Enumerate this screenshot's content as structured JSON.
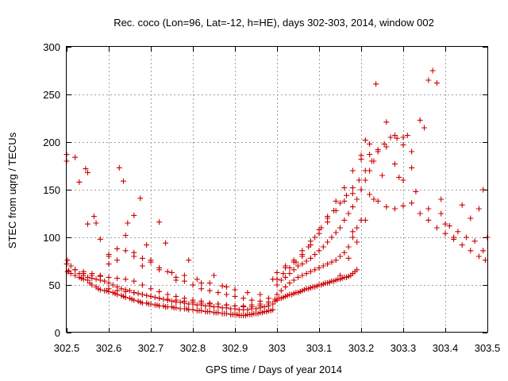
{
  "chart_data": {
    "type": "scatter",
    "title": "Rec. coco (Lon=96, Lat=-12, h=HE), days 302-303, 2014, window 002",
    "xlabel": "GPS time / Days of year 2014",
    "ylabel": "STEC from uqrg / TECUs",
    "xlim": [
      302.5,
      303.5
    ],
    "ylim": [
      0,
      300
    ],
    "x_ticks": [
      302.5,
      302.6,
      302.7,
      302.8,
      302.9,
      303,
      303.1,
      303.2,
      303.3,
      303.4,
      303.5
    ],
    "x_tick_labels": [
      "302.5",
      "302.6",
      "302.7",
      "302.8",
      "302.9",
      "303",
      "303.1",
      "303.2",
      "303.3",
      "303.4",
      "303.5"
    ],
    "y_ticks": [
      0,
      50,
      100,
      150,
      200,
      250,
      300
    ],
    "y_tick_labels": [
      "0",
      "50",
      "100",
      "150",
      "200",
      "250",
      "300"
    ],
    "grid": true,
    "marker": "plus",
    "color": "#cc0000",
    "series": [
      {
        "x": [
          302.502,
          302.505,
          302.51,
          302.52,
          302.53,
          302.535,
          302.54,
          302.55,
          302.555,
          302.56,
          302.57,
          302.575,
          302.58,
          302.59,
          302.595,
          302.6,
          302.61,
          302.615,
          302.62,
          302.63,
          302.635,
          302.64,
          302.65,
          302.655,
          302.66,
          302.67,
          302.675,
          302.68,
          302.69,
          302.695,
          302.7,
          302.71,
          302.715,
          302.72,
          302.73,
          302.735,
          302.74,
          302.75,
          302.755,
          302.76,
          302.77,
          302.78,
          302.785,
          302.79,
          302.8,
          302.81,
          302.815,
          302.82,
          302.83,
          302.835,
          302.84,
          302.85,
          302.855,
          302.86,
          302.87,
          302.875,
          302.88,
          302.89,
          302.895,
          302.9,
          302.905,
          302.91,
          302.915,
          302.92,
          302.925,
          302.93,
          302.935,
          302.94,
          302.945,
          302.95,
          302.955,
          302.96,
          302.965,
          302.97,
          302.975,
          302.98,
          302.985,
          302.99
        ],
        "y": [
          64,
          65,
          62,
          60,
          58,
          57,
          56,
          55,
          52,
          50,
          48,
          46,
          45,
          44,
          44,
          43,
          42,
          41,
          40,
          39,
          38,
          37,
          36,
          35,
          34,
          33,
          32,
          31,
          31,
          30,
          30,
          29,
          29,
          28,
          28,
          27,
          27,
          27,
          26,
          26,
          25,
          25,
          25,
          24,
          24,
          23,
          23,
          23,
          22,
          22,
          22,
          21,
          21,
          21,
          20,
          20,
          20,
          19,
          19,
          19,
          19,
          18,
          18,
          18,
          18,
          19,
          19,
          19,
          20,
          20,
          20,
          21,
          21,
          22,
          22,
          23,
          23,
          24
        ]
      },
      {
        "x": [
          302.502,
          302.51,
          302.52,
          302.53,
          302.54,
          302.55,
          302.56,
          302.57,
          302.58,
          302.59,
          302.6,
          302.61,
          302.62,
          302.63,
          302.64,
          302.65,
          302.66,
          302.67,
          302.68,
          302.69,
          302.7,
          302.71,
          302.72,
          302.73,
          302.74,
          302.75,
          302.76,
          302.77,
          302.78,
          302.79,
          302.8,
          302.81,
          302.82,
          302.83,
          302.84,
          302.85,
          302.86,
          302.87,
          302.88,
          302.89,
          302.9,
          302.91,
          302.92,
          302.93,
          302.94,
          302.95,
          302.96,
          302.97,
          302.98,
          302.99
        ],
        "y": [
          76,
          70,
          66,
          62,
          60,
          58,
          57,
          56,
          55,
          54,
          52,
          50,
          48,
          46,
          45,
          44,
          42,
          41,
          40,
          39,
          38,
          37,
          36,
          35,
          34,
          33,
          32,
          32,
          31,
          30,
          30,
          29,
          29,
          28,
          28,
          27,
          27,
          26,
          26,
          25,
          25,
          24,
          24,
          24,
          25,
          25,
          26,
          27,
          28,
          30
        ]
      },
      {
        "x": [
          302.54,
          302.56,
          302.58,
          302.6,
          302.62,
          302.64,
          302.66,
          302.68,
          302.7,
          302.72,
          302.74,
          302.76,
          302.78,
          302.8,
          302.82,
          302.84,
          302.86,
          302.88,
          302.9,
          302.92,
          302.94,
          302.96,
          302.98,
          302.995
        ],
        "y": [
          62,
          60,
          59,
          58,
          57,
          56,
          54,
          50,
          46,
          43,
          40,
          38,
          36,
          34,
          33,
          31,
          30,
          29,
          28,
          27,
          27,
          28,
          30,
          33
        ]
      },
      {
        "x": [
          302.6,
          302.62,
          302.64,
          302.66,
          302.68,
          302.7,
          302.72,
          302.74,
          302.76,
          302.78,
          302.8,
          302.82,
          302.84,
          302.86,
          302.88,
          302.9,
          302.92,
          302.94,
          302.96,
          302.98,
          302.995
        ],
        "y": [
          46,
          44,
          43,
          42,
          40,
          38,
          36,
          35,
          34,
          33,
          32,
          31,
          30,
          30,
          29,
          28,
          28,
          29,
          30,
          32,
          35
        ]
      },
      {
        "x": [
          302.5,
          302.52,
          302.545,
          302.55,
          302.57,
          302.6,
          302.625,
          302.635,
          302.645,
          302.66,
          302.675,
          302.69,
          302.72,
          302.735,
          302.76,
          302.79,
          302.82,
          302.85,
          302.88,
          302.9
        ],
        "y": [
          187,
          184,
          172,
          168,
          115,
          80,
          173,
          159,
          115,
          123,
          141,
          92,
          116,
          94,
          55,
          76,
          52,
          60,
          48,
          45
        ]
      },
      {
        "x": [
          302.5,
          302.53,
          302.55,
          302.565,
          302.58,
          302.6,
          302.62,
          302.64,
          302.66,
          302.68,
          302.7,
          302.72,
          302.75,
          302.78,
          302.81,
          302.84,
          302.87,
          302.9,
          302.93,
          302.96,
          302.99
        ],
        "y": [
          180,
          158,
          114,
          122,
          98,
          82,
          76,
          102,
          84,
          70,
          76,
          66,
          63,
          60,
          56,
          52,
          49,
          45,
          42,
          40,
          56
        ]
      },
      {
        "x": [
          302.5,
          302.52,
          302.54,
          302.56,
          302.58,
          302.6,
          302.62,
          302.64,
          302.66,
          302.68,
          302.7,
          302.72,
          302.74,
          302.76,
          302.78,
          302.8,
          302.82,
          302.84,
          302.86,
          302.88,
          302.9,
          302.92,
          302.94,
          302.96,
          302.98
        ],
        "y": [
          72,
          66,
          64,
          62,
          60,
          72,
          88,
          86,
          80,
          78,
          74,
          68,
          64,
          58,
          54,
          50,
          46,
          44,
          42,
          40,
          38,
          36,
          34,
          33,
          36
        ]
      },
      {
        "x": [
          303.0,
          303.005,
          303.01,
          303.015,
          303.02,
          303.025,
          303.03,
          303.035,
          303.04,
          303.045,
          303.05,
          303.055,
          303.06,
          303.065,
          303.07,
          303.075,
          303.08,
          303.085,
          303.09,
          303.095,
          303.1,
          303.105,
          303.11,
          303.115,
          303.12,
          303.125,
          303.13,
          303.135,
          303.14,
          303.145,
          303.15,
          303.155,
          303.16,
          303.165,
          303.17,
          303.175,
          303.18,
          303.185,
          303.19
        ],
        "y": [
          34,
          36,
          36,
          37,
          38,
          39,
          40,
          40,
          41,
          42,
          42,
          43,
          44,
          45,
          46,
          46,
          47,
          48,
          48,
          49,
          50,
          50,
          51,
          52,
          52,
          53,
          54,
          54,
          55,
          56,
          56,
          57,
          58,
          58,
          59,
          60,
          62,
          64,
          66
        ]
      },
      {
        "x": [
          303.0,
          303.01,
          303.02,
          303.03,
          303.04,
          303.05,
          303.06,
          303.07,
          303.08,
          303.09,
          303.1,
          303.11,
          303.12,
          303.13,
          303.14,
          303.15,
          303.16,
          303.17,
          303.18,
          303.19,
          303.2
        ],
        "y": [
          40,
          44,
          48,
          52,
          55,
          58,
          60,
          62,
          64,
          66,
          68,
          70,
          72,
          74,
          76,
          80,
          84,
          90,
          100,
          110,
          118
        ]
      },
      {
        "x": [
          303.0,
          303.01,
          303.02,
          303.03,
          303.04,
          303.05,
          303.06,
          303.07,
          303.08,
          303.09,
          303.1,
          303.11,
          303.12,
          303.13,
          303.14,
          303.15,
          303.16,
          303.17,
          303.18,
          303.19,
          303.2,
          303.21,
          303.22,
          303.23
        ],
        "y": [
          50,
          55,
          58,
          62,
          66,
          70,
          72,
          75,
          78,
          82,
          86,
          90,
          95,
          100,
          105,
          110,
          118,
          125,
          132,
          140,
          150,
          160,
          170,
          180
        ]
      },
      {
        "x": [
          303.0,
          303.015,
          303.03,
          303.045,
          303.06,
          303.075,
          303.09,
          303.105,
          303.12,
          303.135,
          303.15,
          303.165,
          303.18,
          303.195,
          303.21,
          303.225,
          303.24,
          303.255,
          303.27,
          303.285,
          303.3,
          303.31,
          303.32
        ],
        "y": [
          56,
          62,
          68,
          74,
          80,
          90,
          100,
          110,
          120,
          128,
          136,
          144,
          152,
          160,
          170,
          180,
          190,
          198,
          205,
          204,
          205,
          207,
          173
        ]
      },
      {
        "x": [
          303.0,
          303.02,
          303.04,
          303.06,
          303.08,
          303.1,
          303.12,
          303.14,
          303.16,
          303.18,
          303.2,
          303.22,
          303.24,
          303.26,
          303.28,
          303.3,
          303.32,
          303.34,
          303.36,
          303.38,
          303.4,
          303.42,
          303.44,
          303.46,
          303.48,
          303.495
        ],
        "y": [
          63,
          68,
          74,
          82,
          92,
          104,
          116,
          128,
          138,
          146,
          150,
          145,
          138,
          132,
          130,
          133,
          136,
          125,
          118,
          110,
          104,
          98,
          92,
          86,
          80,
          76
        ]
      },
      {
        "x": [
          303.02,
          303.04,
          303.06,
          303.08,
          303.1,
          303.12,
          303.14,
          303.16,
          303.18,
          303.2,
          303.22,
          303.24,
          303.26,
          303.28,
          303.3,
          303.32,
          303.34,
          303.35,
          303.36,
          303.37,
          303.38,
          303.39,
          303.4,
          303.42,
          303.44,
          303.46,
          303.48,
          303.49
        ],
        "y": [
          70,
          76,
          86,
          96,
          108,
          122,
          138,
          152,
          170,
          182,
          187,
          192,
          221,
          207,
          197,
          190,
          223,
          215,
          265,
          275,
          262,
          140,
          114,
          100,
          134,
          120,
          130,
          150
        ]
      },
      {
        "x": [
          303.15,
          303.17,
          303.19,
          303.21,
          303.23,
          303.25,
          303.28,
          303.3,
          303.33,
          303.36,
          303.39,
          303.41,
          303.43,
          303.45,
          303.47,
          303.49,
          303.5
        ],
        "y": [
          60,
          78,
          95,
          118,
          140,
          165,
          177,
          160,
          148,
          130,
          125,
          112,
          106,
          100,
          96,
          86,
          100
        ]
      },
      {
        "x": [
          303.18,
          303.2,
          303.21,
          303.22,
          303.235,
          303.26,
          303.29
        ],
        "y": [
          106,
          186,
          202,
          198,
          261,
          195,
          163
        ]
      }
    ]
  }
}
